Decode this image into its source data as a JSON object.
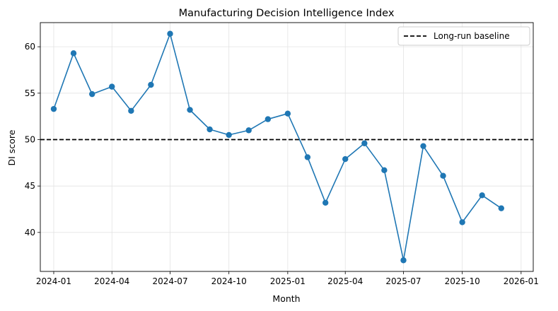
{
  "chart_data": {
    "type": "line",
    "title": "Manufacturing Decision Intelligence Index",
    "xlabel": "Month",
    "ylabel": "DI score",
    "x": [
      "2024-01",
      "2024-02",
      "2024-03",
      "2024-04",
      "2024-05",
      "2024-06",
      "2024-07",
      "2024-08",
      "2024-09",
      "2024-10",
      "2024-11",
      "2024-12",
      "2025-01",
      "2025-02",
      "2025-03",
      "2025-04",
      "2025-05",
      "2025-06",
      "2025-07",
      "2025-08",
      "2025-09",
      "2025-10",
      "2025-11",
      "2025-12"
    ],
    "series": [
      {
        "values": [
          53.3,
          59.3,
          54.9,
          55.7,
          53.1,
          55.9,
          61.4,
          53.2,
          51.1,
          50.5,
          51.0,
          52.2,
          52.8,
          48.1,
          43.2,
          47.9,
          49.6,
          46.7,
          37.0,
          49.3,
          46.1,
          41.1,
          44.0,
          42.6
        ],
        "color": "#1f77b4"
      }
    ],
    "reference_line": {
      "label": "Long-run baseline",
      "value": 50,
      "style": "dashed",
      "color": "#000000"
    },
    "x_ticks": [
      "2024-01",
      "2024-04",
      "2024-07",
      "2024-10",
      "2025-01",
      "2025-04",
      "2025-07",
      "2025-10",
      "2026-01"
    ],
    "y_ticks": [
      40,
      45,
      50,
      55,
      60
    ],
    "ylim": [
      35.8,
      62.6
    ],
    "xlim": [
      "2023-12-11",
      "2026-01-20"
    ],
    "grid": true,
    "legend_position": "top-right"
  }
}
